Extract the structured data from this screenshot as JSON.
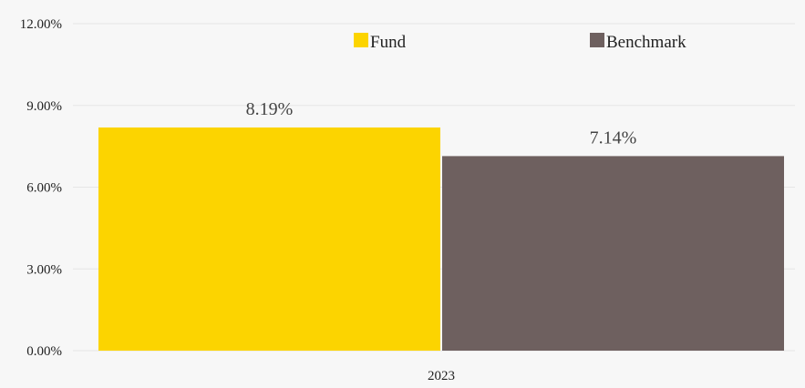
{
  "chart_data": {
    "type": "bar",
    "categories": [
      "2023"
    ],
    "series": [
      {
        "name": "Fund",
        "values": [
          8.19
        ],
        "label": "8.19%",
        "color": "#fcd400"
      },
      {
        "name": "Benchmark",
        "values": [
          7.14
        ],
        "label": "7.14%",
        "color": "#6e605f"
      }
    ],
    "ylim": [
      0,
      12
    ],
    "yticks": [
      {
        "value": 0,
        "label": "0.00%"
      },
      {
        "value": 3,
        "label": "3.00%"
      },
      {
        "value": 6,
        "label": "6.00%"
      },
      {
        "value": 9,
        "label": "9.00%"
      },
      {
        "value": 12,
        "label": "12.00%"
      }
    ],
    "grid": true,
    "legend_position": "top"
  }
}
